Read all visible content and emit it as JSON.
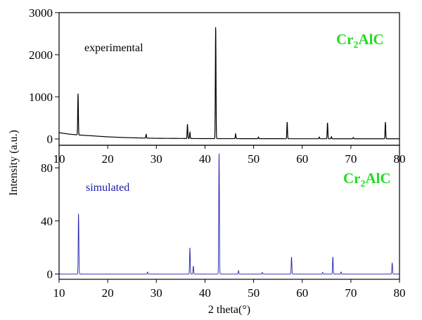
{
  "chart_data": {
    "type": "line",
    "xlabel": "2 theta(°)",
    "ylabel": "Intensity (a.u.)",
    "xlim": [
      10,
      80
    ],
    "x_ticks": [
      "10",
      "20",
      "30",
      "40",
      "50",
      "60",
      "70",
      "80"
    ],
    "grid": false,
    "panels": [
      {
        "name": "experimental",
        "annotation": "experimental",
        "compound": {
          "base": "Cr",
          "sub": "2",
          "rest": "AlC"
        },
        "color": "#000000",
        "ylim": [
          -150,
          3000
        ],
        "y_ticks": [
          0,
          1000,
          2000,
          3000
        ],
        "y_tick_labels": [
          "0",
          "1000",
          "2000",
          "3000"
        ],
        "baseline": [
          [
            10,
            150
          ],
          [
            12,
            115
          ],
          [
            14,
            95
          ],
          [
            16,
            80
          ],
          [
            18,
            65
          ],
          [
            20,
            50
          ],
          [
            23,
            35
          ],
          [
            26,
            25
          ],
          [
            30,
            15
          ],
          [
            40,
            8
          ],
          [
            60,
            5
          ],
          [
            80,
            4
          ]
        ],
        "peaks": [
          {
            "x": 13.9,
            "y": 980
          },
          {
            "x": 27.9,
            "y": 90
          },
          {
            "x": 36.4,
            "y": 340
          },
          {
            "x": 36.9,
            "y": 150
          },
          {
            "x": 42.2,
            "y": 2680
          },
          {
            "x": 46.3,
            "y": 110
          },
          {
            "x": 51.0,
            "y": 40
          },
          {
            "x": 56.9,
            "y": 400
          },
          {
            "x": 63.5,
            "y": 40
          },
          {
            "x": 65.2,
            "y": 380
          },
          {
            "x": 66.0,
            "y": 50
          },
          {
            "x": 70.5,
            "y": 30
          },
          {
            "x": 77.1,
            "y": 400
          }
        ]
      },
      {
        "name": "simulated",
        "annotation": "simulated",
        "compound": {
          "base": "Cr",
          "sub": "2",
          "rest": "AlC"
        },
        "color": "#2222aa",
        "ylim": [
          -4,
          97
        ],
        "y_ticks": [
          0,
          40,
          80
        ],
        "y_tick_labels": [
          "0",
          "40",
          "80"
        ],
        "peaks": [
          {
            "x": 14.0,
            "y": 46
          },
          {
            "x": 28.2,
            "y": 1.5
          },
          {
            "x": 36.9,
            "y": 20
          },
          {
            "x": 37.6,
            "y": 6
          },
          {
            "x": 42.9,
            "y": 92
          },
          {
            "x": 46.9,
            "y": 2.5
          },
          {
            "x": 51.8,
            "y": 1.2
          },
          {
            "x": 57.8,
            "y": 13
          },
          {
            "x": 64.2,
            "y": 1.2
          },
          {
            "x": 66.3,
            "y": 13
          },
          {
            "x": 68.0,
            "y": 1.5
          },
          {
            "x": 78.5,
            "y": 8.5
          }
        ]
      }
    ]
  }
}
